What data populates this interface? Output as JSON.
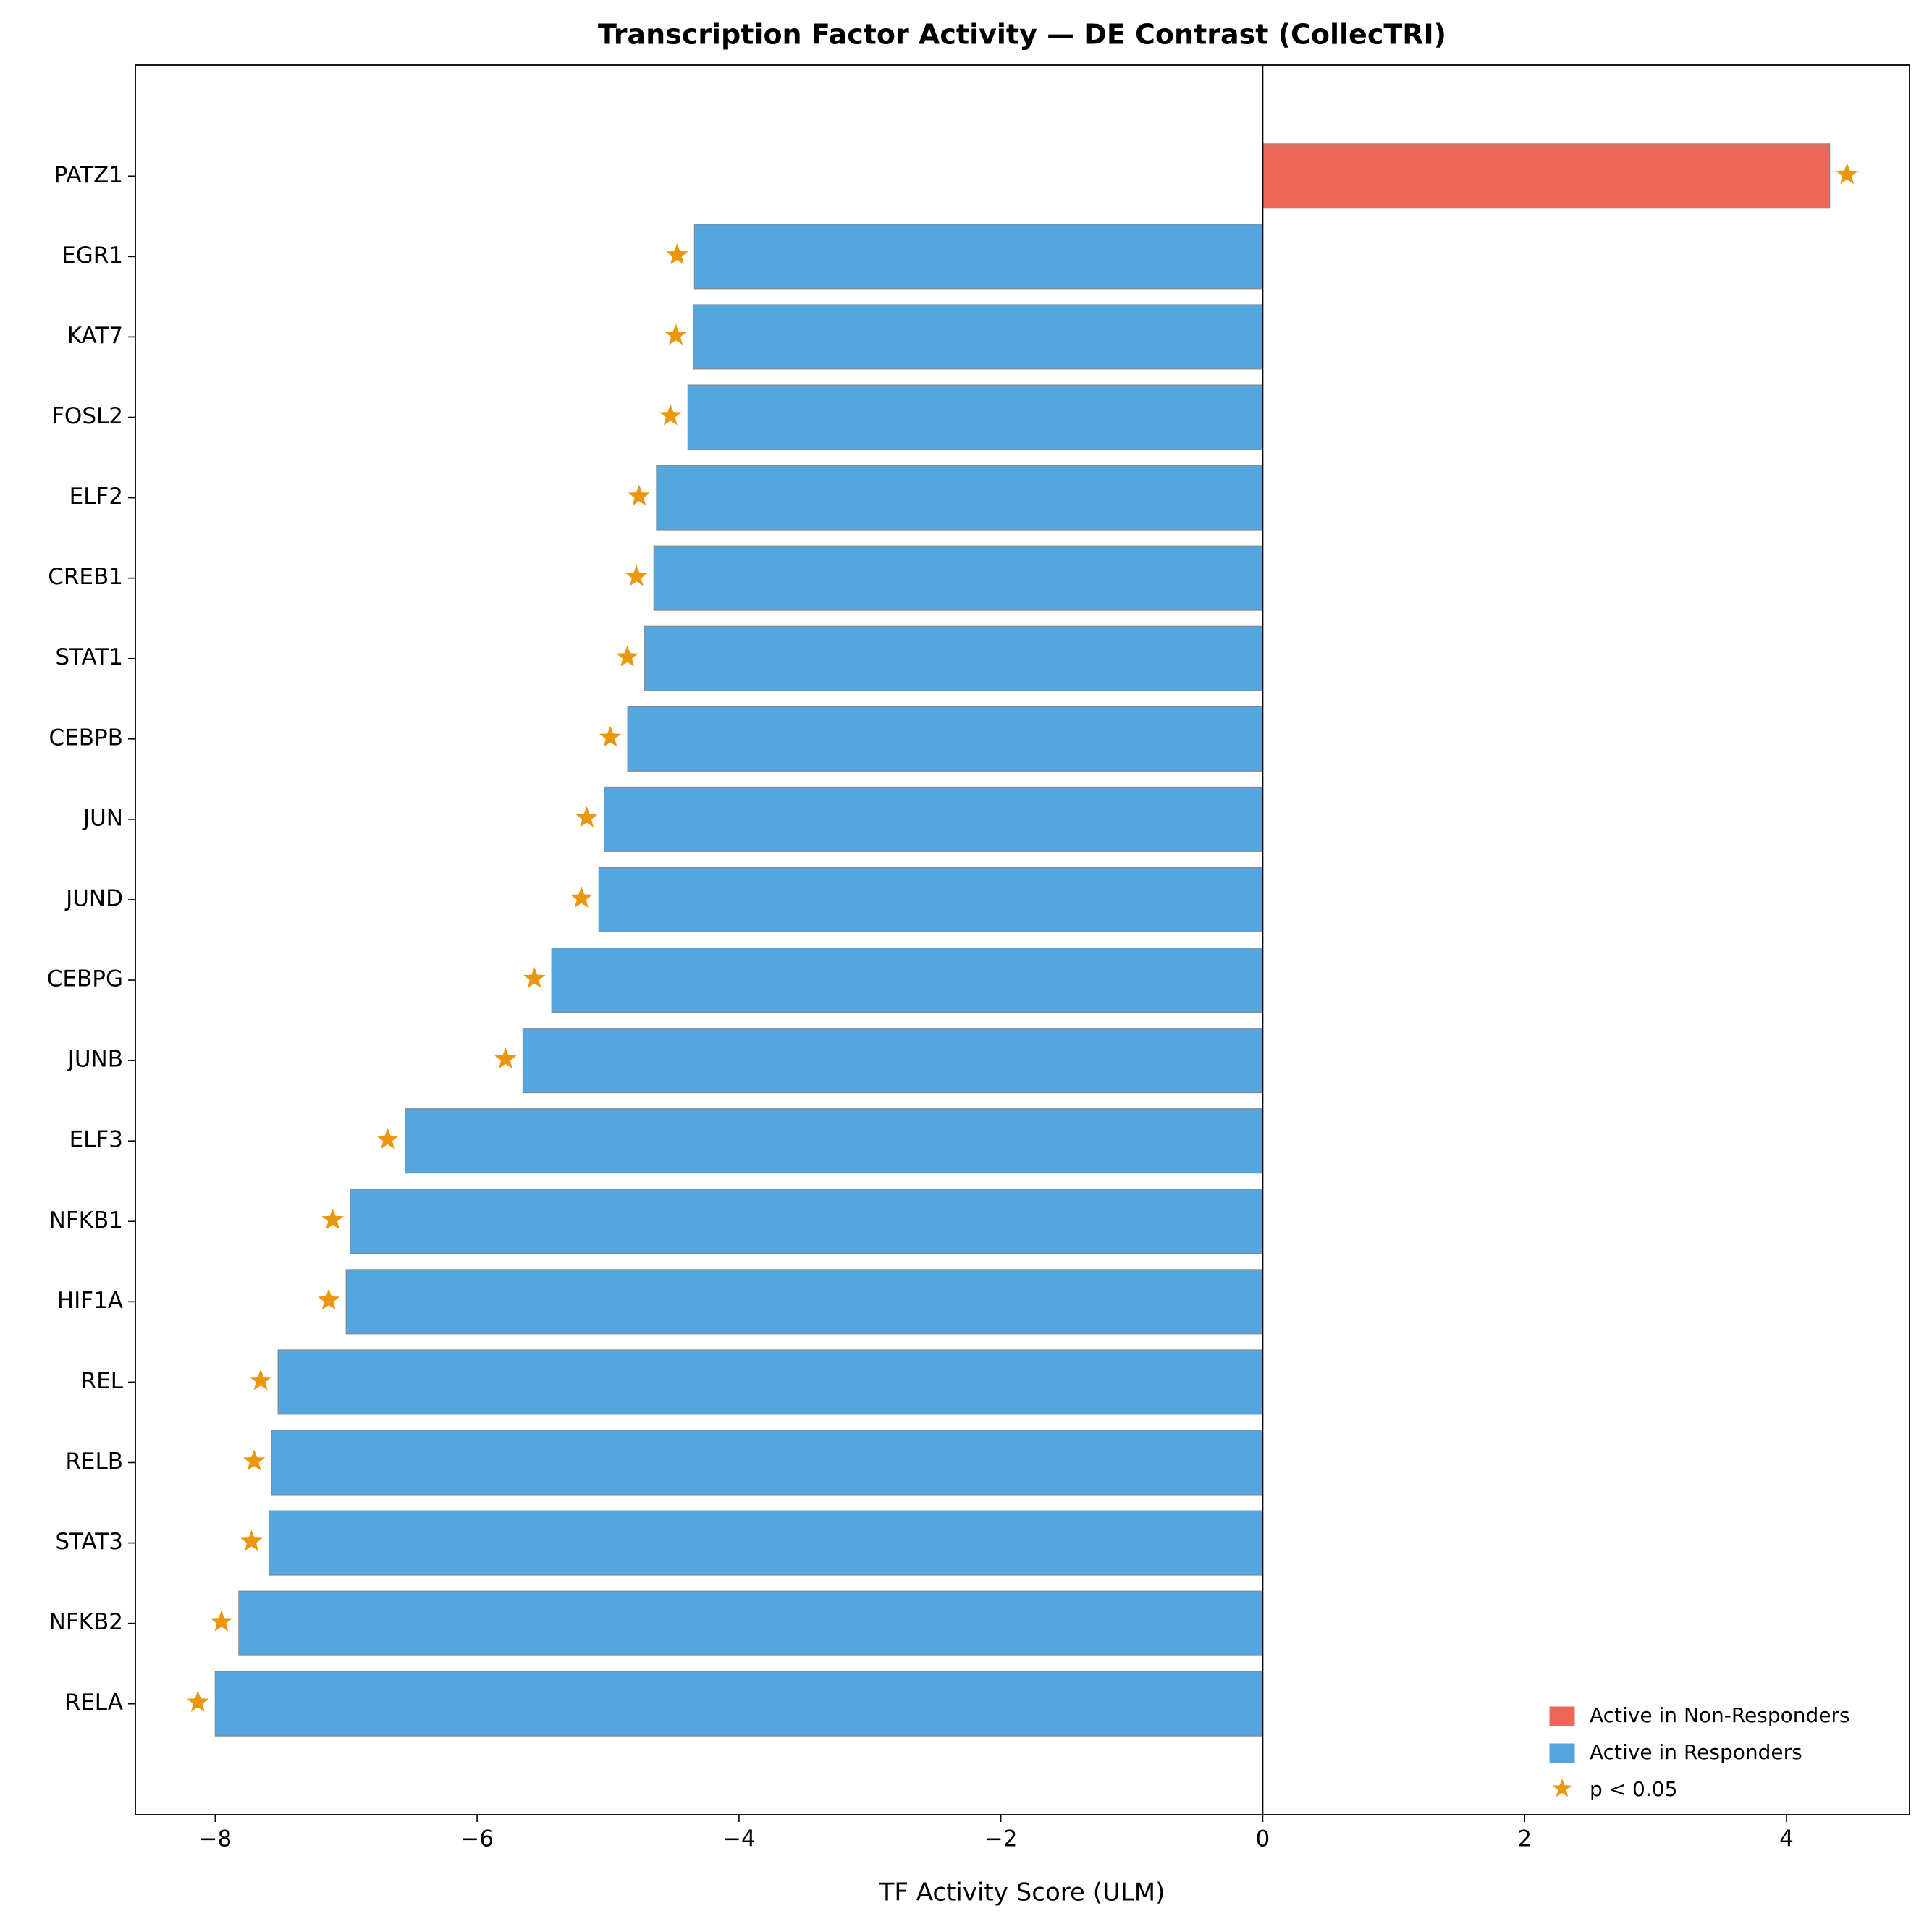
{
  "chart_data": {
    "type": "bar",
    "orientation": "horizontal",
    "title": "Transcription Factor Activity — DE Contrast (CollecTRI)",
    "x_label": "TF Activity Score (ULM)",
    "categories": [
      "PATZ1",
      "EGR1",
      "KAT7",
      "FOSL2",
      "ELF2",
      "CREB1",
      "STAT1",
      "CEBPB",
      "JUN",
      "JUND",
      "CEBPG",
      "JUNB",
      "ELF3",
      "NFKB1",
      "HIF1A",
      "REL",
      "RELB",
      "STAT3",
      "NFKB2",
      "RELA"
    ],
    "series": [
      {
        "name": "Active in Non-Responders",
        "color": "#eb6759",
        "values": [
          4.33,
          null,
          null,
          null,
          null,
          null,
          null,
          null,
          null,
          null,
          null,
          null,
          null,
          null,
          null,
          null,
          null,
          null,
          null,
          null
        ]
      },
      {
        "name": "Active in Responders",
        "color": "#55a6de",
        "values": [
          null,
          -4.34,
          -4.35,
          -4.39,
          -4.63,
          -4.65,
          -4.72,
          -4.85,
          -5.03,
          -5.07,
          -5.43,
          -5.65,
          -6.55,
          -6.97,
          -7.0,
          -7.52,
          -7.57,
          -7.59,
          -7.82,
          -8.0
        ]
      }
    ],
    "markers": {
      "name": "p < 0.05",
      "color": "#eb960f",
      "significant": [
        true,
        true,
        true,
        true,
        true,
        true,
        true,
        true,
        true,
        true,
        true,
        true,
        true,
        true,
        true,
        true,
        true,
        true,
        true,
        true
      ]
    },
    "xlim": [
      -8.61,
      4.94
    ],
    "xticks": [
      {
        "value": -8,
        "label": "−8"
      },
      {
        "value": -6,
        "label": "−6"
      },
      {
        "value": -4,
        "label": "−4"
      },
      {
        "value": -2,
        "label": "−2"
      },
      0,
      2,
      4
    ],
    "legend": "lower right"
  }
}
